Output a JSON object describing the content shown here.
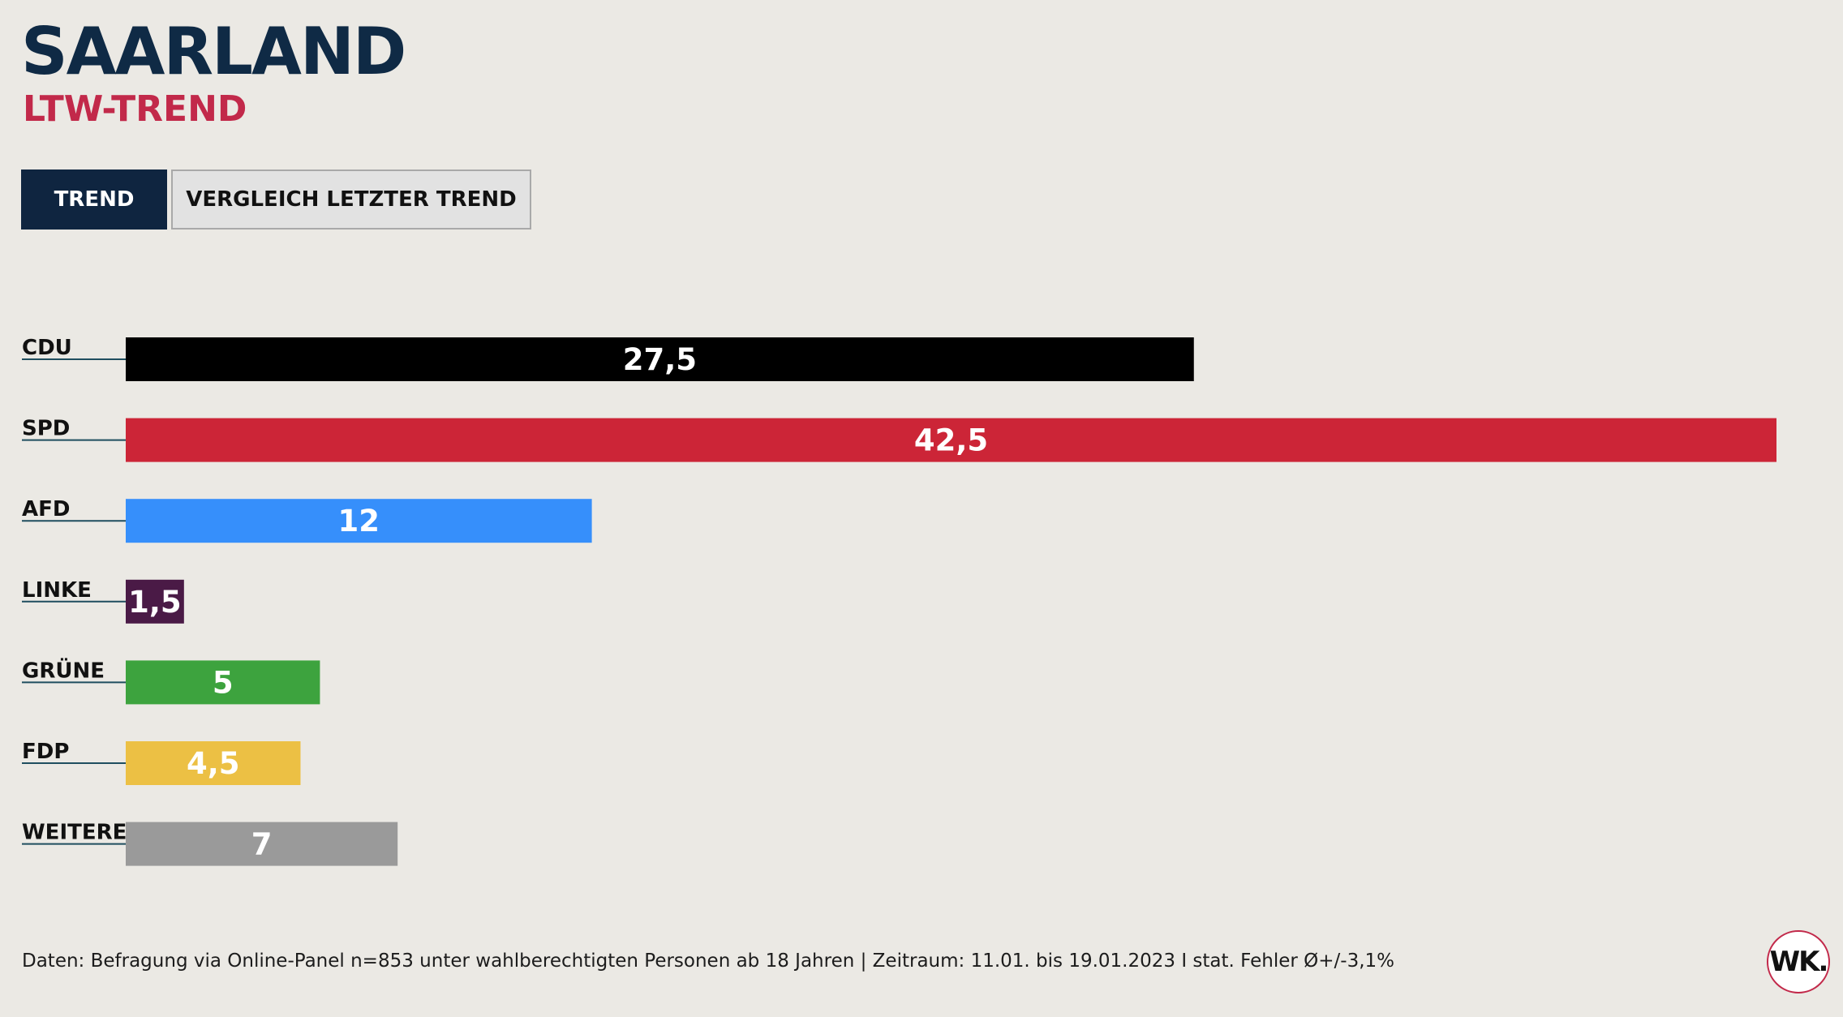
{
  "header": {
    "title": "SAARLAND",
    "subtitle": "LTW-TREND"
  },
  "tabs": [
    {
      "label": "TREND",
      "active": true
    },
    {
      "label": "VERGLEICH LETZTER TREND",
      "active": false
    }
  ],
  "chart_data": {
    "type": "bar",
    "orientation": "horizontal",
    "categories": [
      "CDU",
      "SPD",
      "AFD",
      "LINKE",
      "GRÜNE",
      "FDP",
      "WEITERE"
    ],
    "values": [
      27.5,
      42.5,
      12,
      1.5,
      5,
      4.5,
      7
    ],
    "value_labels": [
      "27,5",
      "42,5",
      "12",
      "1,5",
      "5",
      "4,5",
      "7"
    ],
    "colors": [
      "#000000",
      "#cc2537",
      "#368ffb",
      "#4a1a46",
      "#3da33e",
      "#ecc044",
      "#9a9a9a"
    ],
    "xlim": [
      0,
      42.5
    ],
    "grid": false,
    "legend": "none"
  },
  "footer": {
    "source": "Daten: Befragung via Online-Panel n=853 unter wahlberechtigten Personen ab 18 Jahren | Zeitraum: 11.01. bis 19.01.2023 I stat. Fehler Ø+/-3,1%"
  },
  "logo": {
    "text": "WK."
  }
}
